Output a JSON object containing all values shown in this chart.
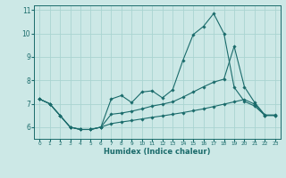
{
  "xlabel": "Humidex (Indice chaleur)",
  "xlim": [
    -0.5,
    23.5
  ],
  "ylim": [
    5.5,
    11.2
  ],
  "yticks": [
    6,
    7,
    8,
    9,
    10,
    11
  ],
  "xticks": [
    0,
    1,
    2,
    3,
    4,
    5,
    6,
    7,
    8,
    9,
    10,
    11,
    12,
    13,
    14,
    15,
    16,
    17,
    18,
    19,
    20,
    21,
    22,
    23
  ],
  "bg_color": "#cce8e6",
  "grid_color": "#aad4d1",
  "line_color": "#1a6b6b",
  "series1": {
    "x": [
      0,
      1,
      2,
      3,
      4,
      5,
      6,
      7,
      8,
      9,
      10,
      11,
      12,
      13,
      14,
      15,
      16,
      17,
      18,
      19,
      20,
      21,
      22,
      23
    ],
    "y": [
      7.2,
      7.0,
      6.5,
      6.0,
      5.9,
      5.9,
      6.0,
      7.2,
      7.35,
      7.05,
      7.5,
      7.55,
      7.25,
      7.6,
      8.85,
      9.95,
      10.3,
      10.85,
      10.0,
      7.7,
      7.1,
      6.9,
      6.5,
      6.5
    ]
  },
  "series2": {
    "x": [
      0,
      1,
      2,
      3,
      4,
      5,
      6,
      7,
      8,
      9,
      10,
      11,
      12,
      13,
      14,
      15,
      16,
      17,
      18,
      19,
      20,
      21,
      22,
      23
    ],
    "y": [
      7.2,
      7.0,
      6.5,
      6.0,
      5.9,
      5.9,
      6.0,
      6.55,
      6.6,
      6.68,
      6.78,
      6.9,
      6.98,
      7.08,
      7.28,
      7.5,
      7.72,
      7.92,
      8.05,
      9.45,
      7.72,
      7.05,
      6.52,
      6.52
    ]
  },
  "series3": {
    "x": [
      0,
      1,
      2,
      3,
      4,
      5,
      6,
      7,
      8,
      9,
      10,
      11,
      12,
      13,
      14,
      15,
      16,
      17,
      18,
      19,
      20,
      21,
      22,
      23
    ],
    "y": [
      7.2,
      7.0,
      6.5,
      6.0,
      5.9,
      5.9,
      6.0,
      6.15,
      6.22,
      6.28,
      6.35,
      6.42,
      6.48,
      6.55,
      6.62,
      6.7,
      6.78,
      6.88,
      6.98,
      7.08,
      7.18,
      6.98,
      6.5,
      6.5
    ]
  }
}
